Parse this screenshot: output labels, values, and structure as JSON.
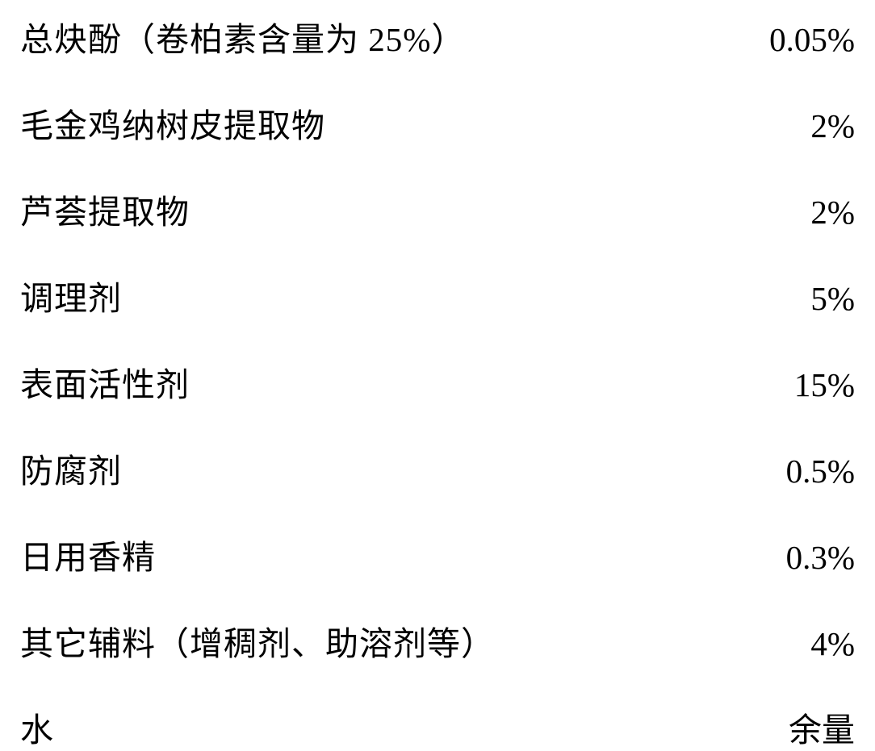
{
  "ingredients": {
    "rows": [
      {
        "label": "总炔酚（卷柏素含量为 25%）",
        "value": "0.05%"
      },
      {
        "label": "毛金鸡纳树皮提取物",
        "value": "2%"
      },
      {
        "label": "芦荟提取物",
        "value": "2%"
      },
      {
        "label": "调理剂",
        "value": "5%"
      },
      {
        "label": "表面活性剂",
        "value": "15%"
      },
      {
        "label": "防腐剂",
        "value": "0.5%"
      },
      {
        "label": "日用香精",
        "value": "0.3%"
      },
      {
        "label": "其它辅料（增稠剂、助溶剂等）",
        "value": "4%"
      },
      {
        "label": "水",
        "value": "余量"
      }
    ],
    "styling": {
      "background_color": "#ffffff",
      "text_color": "#000000",
      "font_size": 41,
      "row_spacing": 47,
      "font_family": "SimSun"
    }
  }
}
